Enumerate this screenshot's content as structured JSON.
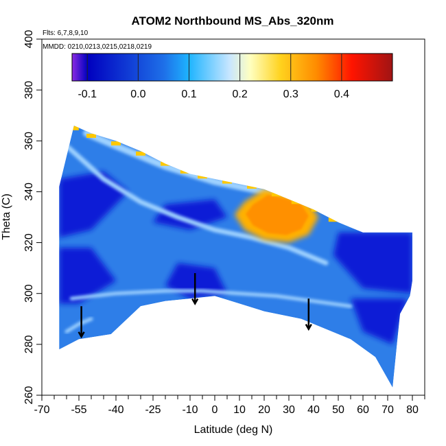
{
  "chart_data": {
    "type": "heatmap",
    "title": "ATOM2 Northbound MS_Abs_320nm",
    "notes": [
      "Flts: 6,7,8,9,10",
      "MMDD: 0210,0213,0215,0218,0219"
    ],
    "xlabel": "Latitude (deg N)",
    "ylabel": "Theta (C)",
    "xlim": [
      -70,
      85
    ],
    "ylim": [
      260,
      400
    ],
    "x_ticks": [
      -70,
      -55,
      -40,
      -25,
      -10,
      0,
      10,
      20,
      30,
      40,
      50,
      60,
      70,
      80
    ],
    "x_minor_step": 5,
    "y_ticks": [
      260,
      280,
      300,
      320,
      340,
      360,
      380,
      400
    ],
    "colorbar": {
      "min": -0.13,
      "max": 0.5,
      "ticks": [
        -0.1,
        0.0,
        0.1,
        0.2,
        0.3,
        0.4
      ],
      "tick_labels": [
        "-0.1",
        "0.0",
        "0.1",
        "0.2",
        "0.3",
        "0.4"
      ],
      "colors": [
        "#8c2be2",
        "#0000bf",
        "#1e6fe8",
        "#1eb4ff",
        "#c8e6ff",
        "#ffffc0",
        "#ffd21e",
        "#ff8c00",
        "#ff1400",
        "#a01414"
      ],
      "color_stops": [
        -0.13,
        -0.1,
        0.05,
        0.1,
        0.18,
        0.22,
        0.28,
        0.35,
        0.42,
        0.5
      ]
    },
    "field_colors": {
      "background": "#ffffff",
      "deep": "#0b1fd6",
      "mid": "#2e7ee8",
      "light": "#9fd2ff",
      "high": "#ffb000"
    },
    "envelope": {
      "top": [
        [
          -63,
          342
        ],
        [
          -57,
          366
        ],
        [
          -50,
          363
        ],
        [
          -40,
          360
        ],
        [
          -30,
          356
        ],
        [
          -20,
          351
        ],
        [
          -10,
          347
        ],
        [
          0,
          345
        ],
        [
          10,
          343
        ],
        [
          20,
          341
        ],
        [
          30,
          337
        ],
        [
          40,
          333
        ],
        [
          50,
          328
        ],
        [
          60,
          324
        ],
        [
          80,
          324
        ],
        [
          80,
          305
        ]
      ],
      "bottom": [
        [
          79,
          299
        ],
        [
          75,
          292
        ],
        [
          72,
          263
        ],
        [
          65,
          275
        ],
        [
          55,
          282
        ],
        [
          45,
          286
        ],
        [
          35,
          290
        ],
        [
          20,
          293
        ],
        [
          10,
          296
        ],
        [
          0,
          299
        ],
        [
          -10,
          298
        ],
        [
          -20,
          297
        ],
        [
          -30,
          295
        ],
        [
          -42,
          284
        ],
        [
          -55,
          282
        ],
        [
          -63,
          278
        ]
      ]
    },
    "high_region": [
      [
        12,
        336
      ],
      [
        20,
        341
      ],
      [
        30,
        339
      ],
      [
        38,
        336
      ],
      [
        42,
        330
      ],
      [
        38,
        323
      ],
      [
        30,
        320
      ],
      [
        20,
        321
      ],
      [
        12,
        325
      ],
      [
        8,
        331
      ]
    ],
    "light_streaks": [
      {
        "points": [
          [
            -52,
            363
          ],
          [
            -40,
            358
          ],
          [
            -20,
            350
          ],
          [
            0,
            344
          ],
          [
            20,
            340
          ],
          [
            35,
            336
          ]
        ],
        "width": 10
      },
      {
        "points": [
          [
            -60,
            358
          ],
          [
            -45,
            345
          ],
          [
            -30,
            336
          ],
          [
            -15,
            330
          ],
          [
            0,
            325
          ],
          [
            15,
            322
          ],
          [
            30,
            318
          ],
          [
            45,
            312
          ]
        ],
        "width": 7
      },
      {
        "points": [
          [
            -58,
            298
          ],
          [
            -40,
            300
          ],
          [
            -20,
            301
          ],
          [
            -5,
            301
          ],
          [
            10,
            300
          ],
          [
            25,
            299
          ],
          [
            40,
            297
          ],
          [
            55,
            295
          ]
        ],
        "width": 5
      },
      {
        "points": [
          [
            -60,
            285
          ],
          [
            -55,
            288
          ],
          [
            -50,
            290
          ]
        ],
        "width": 5
      }
    ],
    "deep_patches": [
      [
        [
          -63,
          345
        ],
        [
          -45,
          348
        ],
        [
          -35,
          340
        ],
        [
          -50,
          325
        ],
        [
          -63,
          322
        ]
      ],
      [
        [
          -63,
          318
        ],
        [
          -50,
          318
        ],
        [
          -40,
          305
        ],
        [
          -55,
          296
        ],
        [
          -63,
          296
        ]
      ],
      [
        [
          -20,
          335
        ],
        [
          0,
          337
        ],
        [
          5,
          330
        ],
        [
          -10,
          325
        ],
        [
          -25,
          328
        ]
      ],
      [
        [
          50,
          324
        ],
        [
          80,
          324
        ],
        [
          80,
          300
        ],
        [
          60,
          302
        ],
        [
          48,
          315
        ]
      ],
      [
        [
          55,
          298
        ],
        [
          78,
          298
        ],
        [
          72,
          280
        ],
        [
          60,
          285
        ]
      ],
      [
        [
          -15,
          312
        ],
        [
          0,
          310
        ],
        [
          5,
          300
        ],
        [
          -10,
          298
        ],
        [
          -20,
          303
        ]
      ]
    ],
    "top_edge_hot": [
      [
        -57,
        365
      ],
      [
        -50,
        362
      ],
      [
        -40,
        359
      ],
      [
        -30,
        355
      ],
      [
        -20,
        351
      ],
      [
        -12,
        348
      ],
      [
        -5,
        346
      ],
      [
        5,
        344
      ],
      [
        15,
        342
      ],
      [
        25,
        339
      ],
      [
        33,
        336
      ],
      [
        41,
        333
      ],
      [
        48,
        329
      ]
    ],
    "arrows": [
      [
        -54,
        289
      ],
      [
        -8,
        302
      ],
      [
        38,
        292
      ]
    ]
  }
}
